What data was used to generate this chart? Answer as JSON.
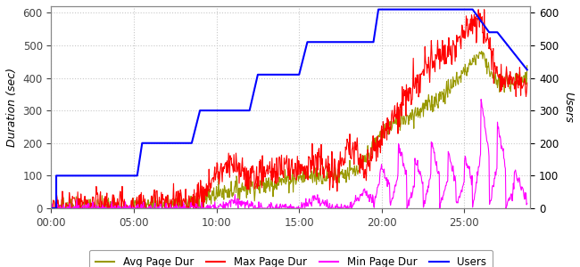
{
  "ylabel_left": "Duration (sec)",
  "ylabel_right": "Users",
  "ylim_left": [
    0,
    620
  ],
  "ylim_right": [
    0,
    620
  ],
  "xlim": [
    0,
    29
  ],
  "xtick_positions": [
    0,
    5,
    10,
    15,
    20,
    25
  ],
  "xtick_labels": [
    "00:00",
    "05:00",
    "10:00",
    "15:00",
    "20:00",
    "25:00"
  ],
  "ytick_left": [
    0,
    100,
    200,
    300,
    400,
    500,
    600
  ],
  "ytick_right": [
    0,
    100,
    200,
    300,
    400,
    500,
    600
  ],
  "background_color": "#ffffff",
  "grid_color": "#c8c8c8",
  "users_x": [
    0,
    0.3,
    0.3,
    1.0,
    1.0,
    5.2,
    5.2,
    5.5,
    5.5,
    8.5,
    8.5,
    9.0,
    9.0,
    12.0,
    12.0,
    12.5,
    12.5,
    15.0,
    15.0,
    15.5,
    15.5,
    19.5,
    19.5,
    19.8,
    19.8,
    25.5,
    25.5,
    26.5,
    26.5,
    27.0,
    27.0,
    28.8
  ],
  "users_y": [
    0,
    0,
    100,
    100,
    100,
    100,
    100,
    200,
    200,
    200,
    200,
    300,
    300,
    300,
    300,
    410,
    410,
    410,
    410,
    510,
    510,
    510,
    510,
    610,
    610,
    610,
    610,
    540,
    540,
    540,
    540,
    425
  ],
  "line_colors": {
    "avg": "#999900",
    "max": "#ff0000",
    "min": "#ff00ff",
    "users": "#0000ff"
  },
  "legend_labels": [
    "Avg Page Dur",
    "Max Page Dur",
    "Min Page Dur",
    "Users"
  ],
  "figsize": [
    6.5,
    3.0
  ],
  "dpi": 100
}
